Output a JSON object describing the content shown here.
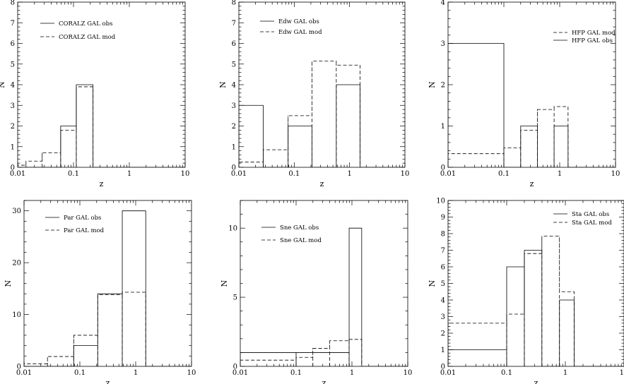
{
  "chart_data": [
    {
      "type": "histogram-step",
      "xscale": "log",
      "xlim": [
        0.01,
        10
      ],
      "ylim": [
        0,
        8
      ],
      "xlabel": "z",
      "ylabel": "N",
      "xticklabels": [
        "0.01",
        "0.1",
        "1",
        "10"
      ],
      "yticks": [
        0,
        1,
        2,
        3,
        4,
        5,
        6,
        7,
        8
      ],
      "legend_position": "top-left",
      "series": [
        {
          "name": "CORALZ GAL obs",
          "style": "solid",
          "edges": [
            0.01,
            0.0589,
            0.1122,
            0.2239
          ],
          "values": [
            0,
            2,
            4
          ]
        },
        {
          "name": "CORALZ GAL mod",
          "style": "dashed",
          "edges": [
            0.01,
            0.0141,
            0.0275,
            0.0589,
            0.1122,
            0.2239
          ],
          "values": [
            0.1,
            0.3,
            0.7,
            1.8,
            3.9
          ]
        }
      ]
    },
    {
      "type": "histogram-step",
      "xscale": "log",
      "xlim": [
        0.01,
        10
      ],
      "ylim": [
        0,
        8
      ],
      "xlabel": "z",
      "ylabel": "N",
      "xticklabels": [
        "0.01",
        "0.1",
        "1",
        "10"
      ],
      "yticks": [
        0,
        1,
        2,
        3,
        4,
        5,
        6,
        7,
        8
      ],
      "legend_position": "top-left",
      "series": [
        {
          "name": "Edw GAL obs",
          "style": "solid",
          "edges": [
            0.01,
            0.0275,
            0.0776,
            0.2089,
            0.5754,
            1.5488
          ],
          "values": [
            3,
            0,
            2,
            0,
            4
          ]
        },
        {
          "name": "Edw GAL mod",
          "style": "dashed",
          "edges": [
            0.01,
            0.0275,
            0.0776,
            0.2089,
            0.5754,
            1.5488
          ],
          "values": [
            0.25,
            0.85,
            2.5,
            5.15,
            4.95
          ]
        }
      ]
    },
    {
      "type": "histogram-step",
      "xscale": "log",
      "xlim": [
        0.01,
        10
      ],
      "ylim": [
        0,
        4
      ],
      "xlabel": "z",
      "ylabel": "N",
      "xticklabels": [
        "0.01",
        "0.1",
        "1",
        "10"
      ],
      "yticks": [
        0,
        1,
        2,
        3,
        4
      ],
      "legend_position": "top-right",
      "series": [
        {
          "name": "HFP GAL mod",
          "style": "dashed",
          "edges": [
            0.01,
            0.1,
            0.2,
            0.3981,
            0.7943,
            1.4125
          ],
          "values": [
            0.33,
            0.47,
            0.9,
            1.4,
            1.47
          ]
        },
        {
          "name": "HFP GAL obs",
          "style": "solid",
          "edges": [
            0.01,
            0.1,
            0.2,
            0.3981,
            0.7943,
            1.4125
          ],
          "values": [
            3,
            0,
            1,
            0,
            1
          ]
        }
      ]
    },
    {
      "type": "histogram-step",
      "xscale": "log",
      "xlim": [
        0.01,
        10
      ],
      "ylim": [
        0,
        32
      ],
      "xlabel": "z",
      "ylabel": "N",
      "xticklabels": [
        "0.01",
        "0.1",
        "1",
        "10"
      ],
      "yticks": [
        0,
        10,
        20,
        30
      ],
      "legend_position": "top-left",
      "series": [
        {
          "name": "Par GAL obs",
          "style": "solid",
          "edges": [
            0.01,
            0.0776,
            0.2089,
            0.5754,
            1.5136
          ],
          "values": [
            0,
            4,
            14,
            30
          ]
        },
        {
          "name": "Par GAL mod",
          "style": "dashed",
          "edges": [
            0.01,
            0.0263,
            0.0776,
            0.2089,
            0.5754,
            1.5136
          ],
          "values": [
            0.5,
            1.9,
            6,
            13.8,
            14.3
          ]
        }
      ]
    },
    {
      "type": "histogram-step",
      "xscale": "log",
      "xlim": [
        0.01,
        10
      ],
      "ylim": [
        0,
        12
      ],
      "xlabel": "z",
      "ylabel": "N",
      "xticklabels": [
        "0.01",
        "0.1",
        "1",
        "10"
      ],
      "yticks": [
        0,
        5,
        10
      ],
      "legend_position": "top-left",
      "series": [
        {
          "name": "Sne GAL obs",
          "style": "solid",
          "edges": [
            0.01,
            0.1,
            0.8913,
            1.4962
          ],
          "values": [
            1,
            1,
            10
          ]
        },
        {
          "name": "Sne GAL mod",
          "style": "dashed",
          "edges": [
            0.01,
            0.1,
            0.1995,
            0.3981,
            0.8913,
            1.4962
          ],
          "values": [
            0.45,
            0.65,
            1.3,
            1.85,
            1.95
          ]
        }
      ]
    },
    {
      "type": "histogram-step",
      "xscale": "log",
      "xlim": [
        0.01,
        10
      ],
      "ylim": [
        0,
        10
      ],
      "xlabel": "z",
      "ylabel": "N",
      "xticklabels": [
        "0.01",
        "0.1",
        "1",
        "10"
      ],
      "yticks": [
        0,
        1,
        2,
        3,
        4,
        5,
        6,
        7,
        8,
        9,
        10
      ],
      "legend_position": "top-right",
      "series": [
        {
          "name": "Sta GAL obs",
          "style": "solid",
          "edges": [
            0.01,
            0.1,
            0.2,
            0.3981,
            0.7943,
            1.4125
          ],
          "values": [
            1,
            6,
            7,
            0,
            4
          ]
        },
        {
          "name": "Sta GAL mod",
          "style": "dashed",
          "edges": [
            0.01,
            0.1,
            0.2,
            0.3981,
            0.7943,
            1.4125
          ],
          "values": [
            2.6,
            3.15,
            6.8,
            7.85,
            4.5
          ]
        }
      ]
    }
  ]
}
